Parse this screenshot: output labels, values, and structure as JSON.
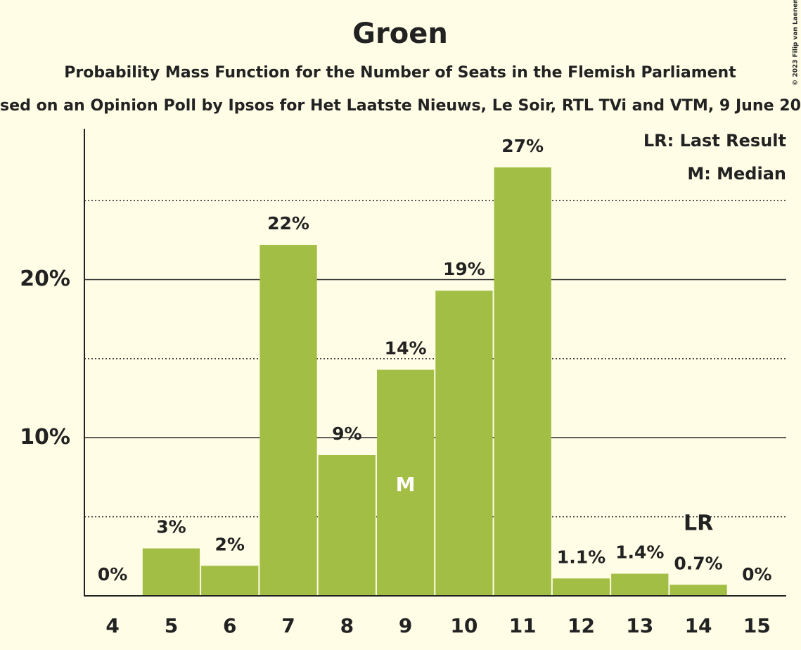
{
  "chart_data": {
    "type": "bar",
    "title": "Groen",
    "subtitle": "Probability Mass Function for the Number of Seats in the Flemish Parliament",
    "subtitle2": "sed on an Opinion Poll by Ipsos for Het Laatste Nieuws, Le Soir, RTL TVi and VTM, 9 June 20",
    "copyright": "© 2023 Filip van Laenen",
    "categories": [
      "4",
      "5",
      "6",
      "7",
      "8",
      "9",
      "10",
      "11",
      "12",
      "13",
      "14",
      "15"
    ],
    "values": [
      0,
      3,
      1.9,
      22.2,
      8.9,
      14.3,
      19.3,
      27.1,
      1.1,
      1.4,
      0.7,
      0
    ],
    "value_labels": [
      "0%",
      "3%",
      "2%",
      "22%",
      "9%",
      "14%",
      "19%",
      "27%",
      "1.1%",
      "1.4%",
      "0.7%",
      "0%"
    ],
    "color": "#a3be45",
    "ylim": [
      0,
      29.5
    ],
    "yticks": [
      {
        "value": 10,
        "label": "10%"
      },
      {
        "value": 20,
        "label": "20%"
      }
    ],
    "minor_grid": [
      5,
      15,
      25
    ],
    "grid": true,
    "median_label": "M",
    "median_category": "9",
    "last_result_label": "LR",
    "last_result_category": "14",
    "legend": [
      "LR: Last Result",
      "M: Median"
    ],
    "legend_position": "top-right"
  }
}
